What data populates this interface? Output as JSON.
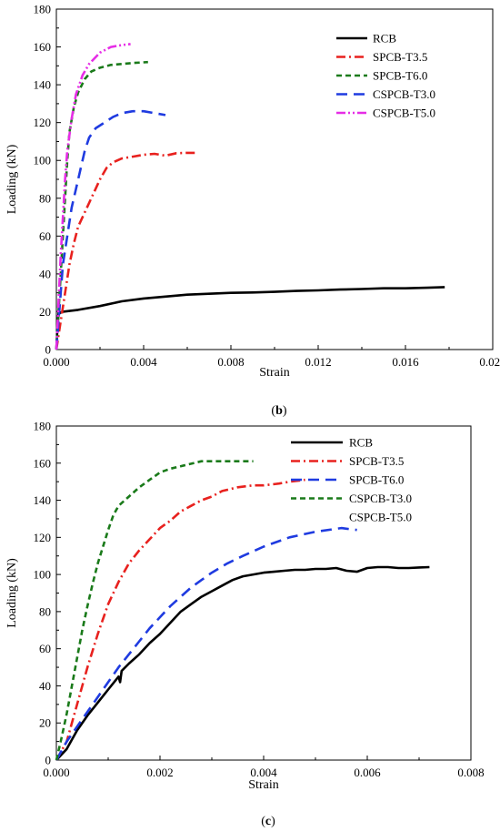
{
  "chart_data": [
    {
      "type": "line",
      "panel_label": {
        "open": "(",
        "letter": "b",
        "close": ")"
      },
      "xlabel": "Strain",
      "ylabel": "Loading (kN)",
      "xlim": [
        0,
        0.02
      ],
      "ylim": [
        0,
        180
      ],
      "xticks": [
        "0.000",
        "0.004",
        "0.008",
        "0.012",
        "0.016",
        "0.020"
      ],
      "yticks": [
        "0",
        "20",
        "40",
        "60",
        "80",
        "100",
        "120",
        "140",
        "160",
        "180"
      ],
      "grid": false,
      "legend_position": "top-right",
      "series": [
        {
          "name": "RCB",
          "color": "#000000",
          "dash": "solid",
          "points": [
            [
              0,
              0
            ],
            [
              5e-05,
              12
            ],
            [
              0.0001,
              19
            ],
            [
              0.0003,
              20
            ],
            [
              0.001,
              21
            ],
            [
              0.002,
              23
            ],
            [
              0.003,
              25.5
            ],
            [
              0.004,
              27
            ],
            [
              0.005,
              28
            ],
            [
              0.006,
              29
            ],
            [
              0.007,
              29.5
            ],
            [
              0.008,
              30
            ],
            [
              0.009,
              30.2
            ],
            [
              0.01,
              30.5
            ],
            [
              0.011,
              31
            ],
            [
              0.012,
              31.3
            ],
            [
              0.013,
              31.7
            ],
            [
              0.014,
              32
            ],
            [
              0.015,
              32.4
            ],
            [
              0.016,
              32.4
            ],
            [
              0.017,
              32.7
            ],
            [
              0.0178,
              33
            ]
          ]
        },
        {
          "name": "SPCB-T3.5",
          "color": "#e8211e",
          "dash": "dashdot",
          "points": [
            [
              0,
              0
            ],
            [
              0.0002,
              15
            ],
            [
              0.0004,
              30
            ],
            [
              0.0006,
              45
            ],
            [
              0.0008,
              56
            ],
            [
              0.001,
              65
            ],
            [
              0.0012,
              70
            ],
            [
              0.0014,
              75
            ],
            [
              0.0016,
              80
            ],
            [
              0.0018,
              85
            ],
            [
              0.002,
              90
            ],
            [
              0.0023,
              96
            ],
            [
              0.0026,
              99
            ],
            [
              0.003,
              101
            ],
            [
              0.0035,
              102
            ],
            [
              0.004,
              103
            ],
            [
              0.0045,
              103.5
            ],
            [
              0.005,
              102.5
            ],
            [
              0.0055,
              103.8
            ],
            [
              0.006,
              104
            ],
            [
              0.0065,
              104
            ]
          ]
        },
        {
          "name": "SPCB-T6.0",
          "color": "#1a7a1a",
          "dash": "dash",
          "points": [
            [
              0,
              0
            ],
            [
              0.0001,
              20
            ],
            [
              0.0002,
              40
            ],
            [
              0.0003,
              60
            ],
            [
              0.0004,
              80
            ],
            [
              0.0005,
              100
            ],
            [
              0.0006,
              115
            ],
            [
              0.0008,
              128
            ],
            [
              0.001,
              136
            ],
            [
              0.0013,
              143
            ],
            [
              0.0016,
              147
            ],
            [
              0.002,
              149
            ],
            [
              0.0025,
              150.5
            ],
            [
              0.003,
              151
            ],
            [
              0.0035,
              151.5
            ],
            [
              0.0042,
              152
            ]
          ]
        },
        {
          "name": "CSPCB-T3.0",
          "color": "#1f3be0",
          "dash": "longdash",
          "points": [
            [
              0,
              0
            ],
            [
              0.0001,
              15
            ],
            [
              0.0002,
              30
            ],
            [
              0.0003,
              45
            ],
            [
              0.0005,
              60
            ],
            [
              0.0007,
              75
            ],
            [
              0.0009,
              85
            ],
            [
              0.0011,
              95
            ],
            [
              0.0013,
              105
            ],
            [
              0.0015,
              112
            ],
            [
              0.0018,
              117
            ],
            [
              0.0022,
              120
            ],
            [
              0.0026,
              123
            ],
            [
              0.003,
              125
            ],
            [
              0.0035,
              126
            ],
            [
              0.004,
              126
            ],
            [
              0.0045,
              125
            ],
            [
              0.005,
              124
            ]
          ]
        },
        {
          "name": "CSPCB-T5.0",
          "color": "#e62de6",
          "dash": "dashdotdot",
          "points": [
            [
              0,
              0
            ],
            [
              0.0001,
              25
            ],
            [
              0.0002,
              50
            ],
            [
              0.0003,
              70
            ],
            [
              0.0004,
              90
            ],
            [
              0.0005,
              105
            ],
            [
              0.0007,
              122
            ],
            [
              0.0009,
              135
            ],
            [
              0.0012,
              145
            ],
            [
              0.0015,
              151
            ],
            [
              0.002,
              157
            ],
            [
              0.0025,
              160
            ],
            [
              0.003,
              161
            ],
            [
              0.0034,
              161.5
            ]
          ]
        }
      ]
    },
    {
      "type": "line",
      "panel_label": {
        "open": "(",
        "letter": "c",
        "close": ")"
      },
      "xlabel": "Strain",
      "ylabel": "Loading (kN)",
      "xlim": [
        0,
        0.008
      ],
      "ylim": [
        0,
        180
      ],
      "xticks": [
        "0.000",
        "0.002",
        "0.004",
        "0.006",
        "0.008"
      ],
      "yticks": [
        "0",
        "20",
        "40",
        "60",
        "80",
        "100",
        "120",
        "140",
        "160",
        "180"
      ],
      "grid": false,
      "legend_position": "top-right",
      "legend_only_series": [
        {
          "name": "CSPCB-T5.0"
        }
      ],
      "series": [
        {
          "name": "RCB",
          "color": "#000000",
          "dash": "solid",
          "points": [
            [
              0,
              0
            ],
            [
              0.0002,
              6
            ],
            [
              0.0004,
              16
            ],
            [
              0.0006,
              24
            ],
            [
              0.0008,
              31
            ],
            [
              0.001,
              38
            ],
            [
              0.0012,
              45
            ],
            [
              0.00123,
              42
            ],
            [
              0.00126,
              48
            ],
            [
              0.0014,
              52
            ],
            [
              0.0016,
              57
            ],
            [
              0.0018,
              63
            ],
            [
              0.002,
              68
            ],
            [
              0.0022,
              74
            ],
            [
              0.0024,
              80
            ],
            [
              0.0026,
              84
            ],
            [
              0.0028,
              88
            ],
            [
              0.003,
              91
            ],
            [
              0.0032,
              94
            ],
            [
              0.0034,
              97
            ],
            [
              0.0036,
              99
            ],
            [
              0.0038,
              100
            ],
            [
              0.004,
              101
            ],
            [
              0.0042,
              101.5
            ],
            [
              0.0044,
              102
            ],
            [
              0.0046,
              102.5
            ],
            [
              0.0048,
              102.5
            ],
            [
              0.005,
              103
            ],
            [
              0.0052,
              103
            ],
            [
              0.0054,
              103.5
            ],
            [
              0.0056,
              102
            ],
            [
              0.0058,
              101.5
            ],
            [
              0.006,
              103.5
            ],
            [
              0.0062,
              104
            ],
            [
              0.0064,
              104
            ],
            [
              0.0066,
              103.5
            ],
            [
              0.0068,
              103.5
            ],
            [
              0.007,
              103.8
            ],
            [
              0.0072,
              104
            ]
          ]
        },
        {
          "name": "SPCB-T3.5",
          "color": "#e8211e",
          "dash": "dashdot",
          "points": [
            [
              0,
              0
            ],
            [
              0.0002,
              10
            ],
            [
              0.0004,
              30
            ],
            [
              0.0006,
              50
            ],
            [
              0.0008,
              68
            ],
            [
              0.001,
              84
            ],
            [
              0.0012,
              96
            ],
            [
              0.0014,
              106
            ],
            [
              0.0016,
              113
            ],
            [
              0.0018,
              119
            ],
            [
              0.002,
              125
            ],
            [
              0.0022,
              129
            ],
            [
              0.0024,
              134
            ],
            [
              0.0026,
              137
            ],
            [
              0.0028,
              140
            ],
            [
              0.003,
              142
            ],
            [
              0.0032,
              145
            ],
            [
              0.0035,
              147
            ],
            [
              0.0038,
              148
            ],
            [
              0.004,
              148
            ],
            [
              0.0043,
              149
            ],
            [
              0.0045,
              150
            ],
            [
              0.0048,
              151
            ]
          ]
        },
        {
          "name": "SPCB-T6.0",
          "color": "#1f3be0",
          "dash": "longdash",
          "points": [
            [
              0,
              0
            ],
            [
              0.0002,
              10
            ],
            [
              0.0004,
              18
            ],
            [
              0.0006,
              26
            ],
            [
              0.0008,
              34
            ],
            [
              0.001,
              42
            ],
            [
              0.0012,
              50
            ],
            [
              0.0014,
              57
            ],
            [
              0.0016,
              64
            ],
            [
              0.0018,
              71
            ],
            [
              0.002,
              77
            ],
            [
              0.0022,
              83
            ],
            [
              0.0024,
              88
            ],
            [
              0.0026,
              93
            ],
            [
              0.0028,
              97
            ],
            [
              0.003,
              101
            ],
            [
              0.0033,
              106
            ],
            [
              0.0036,
              110
            ],
            [
              0.004,
              115
            ],
            [
              0.0045,
              120
            ],
            [
              0.005,
              123
            ],
            [
              0.0055,
              125
            ],
            [
              0.0058,
              124
            ]
          ]
        },
        {
          "name": "CSPCB-T3.0",
          "color": "#1a7a1a",
          "dash": "dash",
          "points": [
            [
              0,
              0
            ],
            [
              0.0001,
              12
            ],
            [
              0.0002,
              25
            ],
            [
              0.0003,
              40
            ],
            [
              0.0004,
              55
            ],
            [
              0.0005,
              70
            ],
            [
              0.0006,
              83
            ],
            [
              0.0007,
              95
            ],
            [
              0.0008,
              106
            ],
            [
              0.0009,
              115
            ],
            [
              0.001,
              124
            ],
            [
              0.0011,
              132
            ],
            [
              0.0012,
              137
            ],
            [
              0.0014,
              142
            ],
            [
              0.0016,
              147
            ],
            [
              0.0018,
              151
            ],
            [
              0.002,
              155
            ],
            [
              0.0022,
              157
            ],
            [
              0.0025,
              159
            ],
            [
              0.0028,
              161
            ],
            [
              0.0032,
              161
            ],
            [
              0.0035,
              161
            ],
            [
              0.0038,
              161
            ]
          ]
        }
      ]
    }
  ]
}
